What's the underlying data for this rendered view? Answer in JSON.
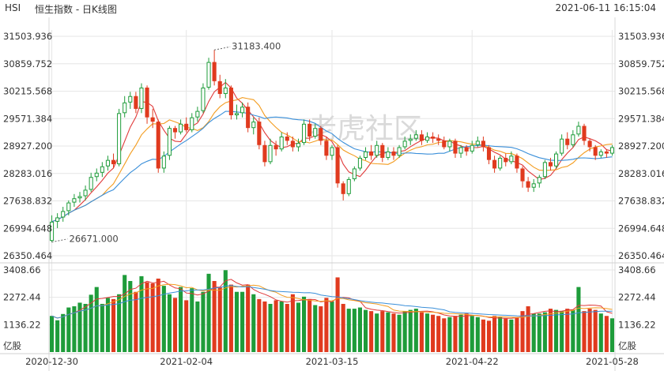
{
  "header": {
    "symbol": "HSI",
    "name": "恒生指数 - 日K线图",
    "timestamp": "2021-06-11 16:15:04"
  },
  "watermark": "老虎社区",
  "colors": {
    "up": "#1e9c3a",
    "down": "#e03a1e",
    "ma5": "#e03a3a",
    "ma10": "#f39c1f",
    "ma20": "#3a8fd9",
    "grid": "#e6e6e6"
  },
  "chart_data": {
    "type": "candlestick",
    "price_ticks": [
      "31503.936",
      "30859.752",
      "30215.568",
      "29571.384",
      "28927.200",
      "28283.016",
      "27638.832",
      "26994.648",
      "26350.464"
    ],
    "price_range": [
      26350.464,
      31503.936
    ],
    "volume_ticks": [
      "3408.66",
      "2272.44",
      "1136.22"
    ],
    "volume_range": [
      0,
      3408.66
    ],
    "volume_unit": "亿股",
    "x_labels": [
      "2020-12-30",
      "2021-02-04",
      "2021-03-15",
      "2021-04-22",
      "2021-05-28"
    ],
    "x_label_index": [
      0,
      24,
      50,
      75,
      100
    ],
    "annotations": {
      "high": {
        "text": "31183.400",
        "value": 31183.4,
        "index": 29
      },
      "low": {
        "text": "26671.000",
        "value": 26671.0,
        "index": 0
      }
    },
    "candles": [
      [
        26700,
        27150,
        27300,
        26671
      ],
      [
        27150,
        27250,
        27350,
        27000
      ],
      [
        27250,
        27400,
        27500,
        27150
      ],
      [
        27400,
        27600,
        27650,
        27300
      ],
      [
        27600,
        27700,
        27800,
        27500
      ],
      [
        27700,
        27750,
        27850,
        27600
      ],
      [
        27750,
        27900,
        28000,
        27650
      ],
      [
        27900,
        28200,
        28300,
        27850
      ],
      [
        28200,
        28300,
        28400,
        28100
      ],
      [
        28300,
        28450,
        28550,
        28200
      ],
      [
        28450,
        28600,
        28700,
        28350
      ],
      [
        28600,
        28500,
        28750,
        28400
      ],
      [
        28500,
        29700,
        29800,
        28450
      ],
      [
        29700,
        29950,
        30100,
        29600
      ],
      [
        29950,
        30100,
        30200,
        29800
      ],
      [
        30100,
        29800,
        30200,
        29700
      ],
      [
        29800,
        30300,
        30400,
        29700
      ],
      [
        30300,
        29600,
        30350,
        29450
      ],
      [
        29600,
        29500,
        29800,
        29350
      ],
      [
        29500,
        28400,
        29550,
        28300
      ],
      [
        28400,
        28700,
        28800,
        28300
      ],
      [
        28700,
        29350,
        29400,
        28600
      ],
      [
        29350,
        29250,
        29400,
        29100
      ],
      [
        29250,
        29450,
        29550,
        29200
      ],
      [
        29450,
        29300,
        29600,
        29250
      ],
      [
        29300,
        29600,
        29700,
        29250
      ],
      [
        29600,
        29750,
        29850,
        29500
      ],
      [
        29750,
        30300,
        30400,
        29700
      ],
      [
        30300,
        30900,
        31000,
        30250
      ],
      [
        30900,
        30450,
        31183.4,
        30350
      ],
      [
        30450,
        30150,
        30600,
        30050
      ],
      [
        30150,
        30300,
        30500,
        30050
      ],
      [
        30300,
        29650,
        30350,
        29550
      ],
      [
        29650,
        29700,
        29900,
        29550
      ],
      [
        29700,
        29850,
        29950,
        29600
      ],
      [
        29850,
        29350,
        29950,
        29250
      ],
      [
        29350,
        29500,
        29600,
        29200
      ],
      [
        29500,
        28950,
        29600,
        28850
      ],
      [
        28950,
        28550,
        29050,
        28450
      ],
      [
        28550,
        28950,
        29100,
        28500
      ],
      [
        28950,
        28850,
        29050,
        28700
      ],
      [
        28850,
        29150,
        29250,
        28800
      ],
      [
        29150,
        29050,
        29250,
        28950
      ],
      [
        29050,
        28900,
        29150,
        28800
      ],
      [
        28900,
        29000,
        29100,
        28800
      ],
      [
        29000,
        29450,
        29550,
        28950
      ],
      [
        29450,
        29150,
        29550,
        29050
      ],
      [
        29150,
        29350,
        29450,
        29100
      ],
      [
        29350,
        29050,
        29400,
        28950
      ],
      [
        29050,
        28700,
        29150,
        28600
      ],
      [
        28700,
        28900,
        28950,
        28600
      ],
      [
        28900,
        28050,
        28950,
        27950
      ],
      [
        28050,
        27800,
        28100,
        27650
      ],
      [
        27800,
        28150,
        28200,
        27750
      ],
      [
        28150,
        28400,
        28450,
        28100
      ],
      [
        28400,
        28650,
        28700,
        28350
      ],
      [
        28650,
        28800,
        28900,
        28600
      ],
      [
        28800,
        28700,
        28950,
        28600
      ],
      [
        28700,
        28950,
        29050,
        28650
      ],
      [
        28950,
        28650,
        29000,
        28550
      ],
      [
        28650,
        28800,
        28900,
        28600
      ],
      [
        28800,
        28700,
        28900,
        28600
      ],
      [
        28700,
        28900,
        28950,
        28650
      ],
      [
        28900,
        29050,
        29150,
        28850
      ],
      [
        29050,
        29100,
        29200,
        28950
      ],
      [
        29100,
        29200,
        29300,
        29050
      ],
      [
        29200,
        29050,
        29300,
        28950
      ],
      [
        29050,
        29150,
        29250,
        29000
      ],
      [
        29150,
        29100,
        29250,
        29000
      ],
      [
        29100,
        29050,
        29200,
        28950
      ],
      [
        29050,
        28900,
        29150,
        28850
      ],
      [
        28900,
        29050,
        29100,
        28800
      ],
      [
        29050,
        28750,
        29100,
        28650
      ],
      [
        28750,
        28900,
        28950,
        28650
      ],
      [
        28900,
        28800,
        28950,
        28700
      ],
      [
        28800,
        28950,
        29050,
        28750
      ],
      [
        28950,
        29050,
        29150,
        28900
      ],
      [
        29050,
        28900,
        29150,
        28800
      ],
      [
        28900,
        28600,
        28950,
        28500
      ],
      [
        28600,
        28400,
        28700,
        28300
      ],
      [
        28400,
        28650,
        28700,
        28350
      ],
      [
        28650,
        28550,
        28750,
        28450
      ],
      [
        28550,
        28700,
        28800,
        28500
      ],
      [
        28700,
        28400,
        28750,
        28300
      ],
      [
        28400,
        28100,
        28450,
        27950
      ],
      [
        28100,
        27950,
        28200,
        27850
      ],
      [
        27950,
        28050,
        28150,
        27850
      ],
      [
        28050,
        28200,
        28250,
        27950
      ],
      [
        28200,
        28550,
        28600,
        28150
      ],
      [
        28550,
        28450,
        28650,
        28350
      ],
      [
        28450,
        28750,
        28800,
        28400
      ],
      [
        28750,
        29100,
        29200,
        28700
      ],
      [
        29100,
        28950,
        29250,
        28850
      ],
      [
        28950,
        29200,
        29300,
        28900
      ],
      [
        29200,
        29400,
        29500,
        29150
      ],
      [
        29400,
        29050,
        29450,
        28950
      ],
      [
        29050,
        28900,
        29100,
        28800
      ],
      [
        28900,
        28700,
        28950,
        28600
      ],
      [
        28700,
        28800,
        28850,
        28650
      ],
      [
        28800,
        28750,
        28850,
        28650
      ],
      [
        28750,
        28900,
        28950,
        28700
      ]
    ],
    "volumes": [
      1500,
      1320,
      1580,
      1850,
      1900,
      2050,
      2000,
      2380,
      2700,
      2000,
      2250,
      2200,
      2400,
      3200,
      2950,
      2500,
      3150,
      2900,
      2850,
      3050,
      2750,
      2400,
      2250,
      2700,
      2150,
      2650,
      2100,
      2500,
      3250,
      2950,
      2700,
      3400,
      2800,
      2500,
      2500,
      2800,
      2400,
      2200,
      2100,
      2000,
      2150,
      2100,
      2000,
      2400,
      2050,
      2300,
      2200,
      1950,
      1900,
      2250,
      2100,
      3100,
      2000,
      1800,
      1800,
      1850,
      1750,
      1700,
      1600,
      1700,
      1650,
      1600,
      1550,
      1700,
      1750,
      1800,
      1650,
      1600,
      1550,
      1500,
      1400,
      1450,
      1500,
      1550,
      1600,
      1500,
      1450,
      1350,
      1300,
      1500,
      1450,
      1400,
      1350,
      1450,
      1700,
      1900,
      1600,
      1600,
      1650,
      1800,
      1750,
      1700,
      1800,
      1750,
      2700,
      1700,
      1800,
      1750,
      1600,
      1500,
      1400
    ],
    "ma_series": [
      "MA5",
      "MA10",
      "MA20"
    ]
  }
}
